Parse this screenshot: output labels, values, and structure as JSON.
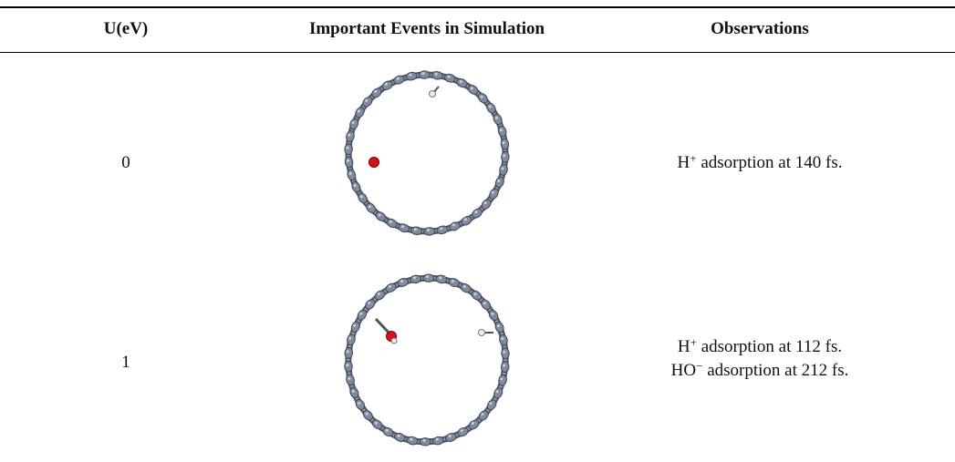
{
  "table": {
    "header": [
      "U(eV)",
      "Important Events in Simulation",
      "Observations"
    ],
    "rows": [
      {
        "u": "0",
        "observations": [
          {
            "species": "H",
            "charge": "+",
            "text": " adsorption at 140 fs."
          }
        ]
      },
      {
        "u": "1",
        "observations": [
          {
            "species": "H",
            "charge": "+",
            "text": " adsorption at 112 fs."
          },
          {
            "species": "HO",
            "charge": "−",
            "text": " adsorption at 212 fs."
          }
        ]
      }
    ]
  }
}
